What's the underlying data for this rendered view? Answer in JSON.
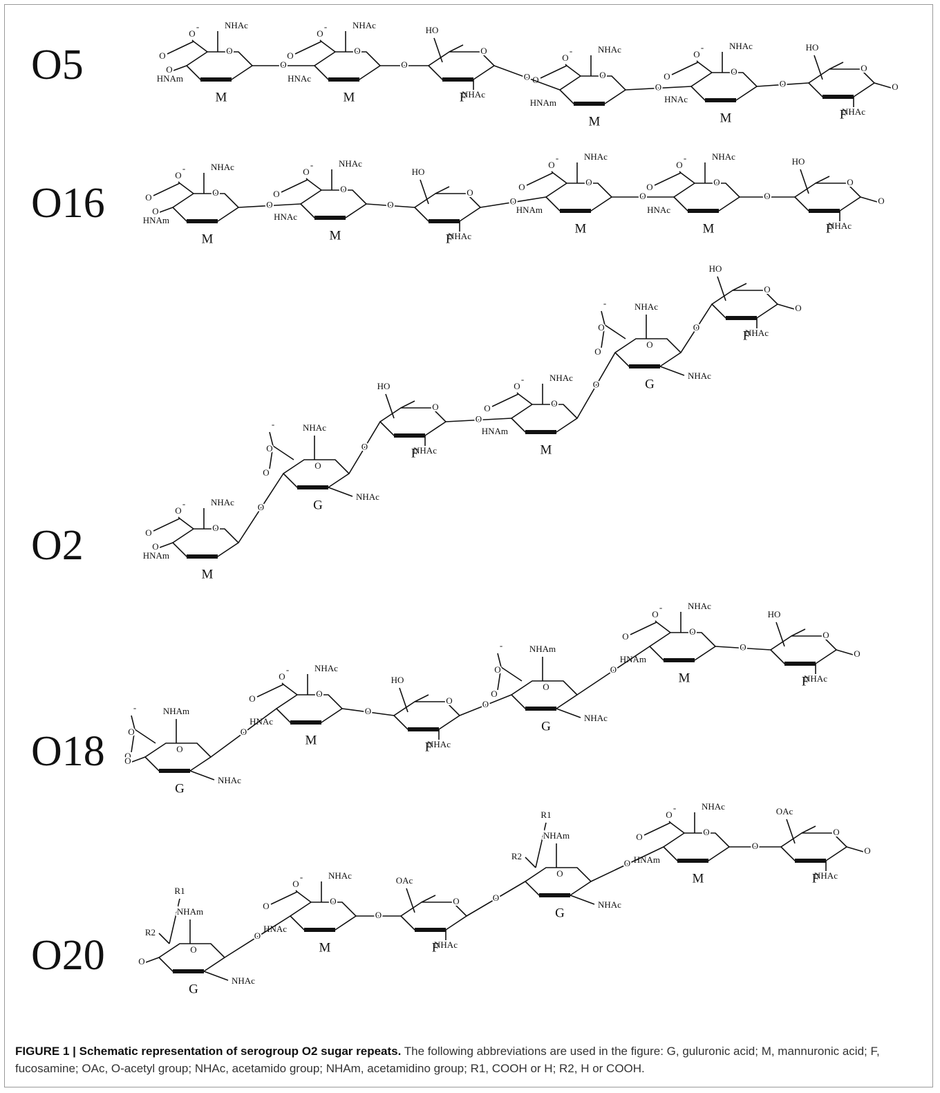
{
  "rows": [
    {
      "label": "O5",
      "links": [
        "O",
        "O",
        "O",
        "O",
        "O",
        "O",
        "O"
      ],
      "residues": [
        {
          "letter": "M",
          "labels": [
            "O",
            "O",
            "-",
            "NHAc",
            "O",
            "HNAm"
          ]
        },
        {
          "letter": "M",
          "labels": [
            "O",
            "O",
            "-",
            "NHAc",
            "O",
            "HNAc"
          ]
        },
        {
          "letter": "F",
          "labels": [
            "HO",
            "O",
            "NHAc"
          ]
        },
        {
          "letter": "M",
          "labels": [
            "O",
            "O",
            "-",
            "NHAc",
            "O",
            "HNAm"
          ]
        },
        {
          "letter": "M",
          "labels": [
            "O",
            "O",
            "-",
            "NHAc",
            "O",
            "HNAc"
          ]
        },
        {
          "letter": "F",
          "labels": [
            "HO",
            "O",
            "NHAc"
          ]
        }
      ]
    },
    {
      "label": "O16",
      "links": [
        "O",
        "O",
        "O",
        "O",
        "O",
        "O",
        "O"
      ],
      "residues": [
        {
          "letter": "M",
          "labels": [
            "O",
            "O",
            "-",
            "NHAc",
            "O",
            "HNAm"
          ]
        },
        {
          "letter": "M",
          "labels": [
            "O",
            "O",
            "-",
            "NHAc",
            "O",
            "HNAc"
          ]
        },
        {
          "letter": "F",
          "labels": [
            "HO",
            "O",
            "NHAc"
          ]
        },
        {
          "letter": "M",
          "labels": [
            "O",
            "O",
            "-",
            "NHAc",
            "O",
            "HNAm"
          ]
        },
        {
          "letter": "M",
          "labels": [
            "O",
            "O",
            "-",
            "NHAc",
            "O",
            "HNAc"
          ]
        },
        {
          "letter": "F",
          "labels": [
            "HO",
            "O",
            "NHAc"
          ]
        }
      ]
    },
    {
      "label": "O2",
      "links": [
        "O",
        "O",
        "O",
        "O",
        "O",
        "O",
        "O"
      ],
      "residues": [
        {
          "letter": "M",
          "labels": [
            "O",
            "O",
            "-",
            "NHAc",
            "O",
            "HNAm"
          ]
        },
        {
          "letter": "G",
          "labels": [
            "O",
            "-",
            "O",
            "NHAc",
            "O",
            "NHAc"
          ]
        },
        {
          "letter": "F",
          "labels": [
            "HO",
            "O",
            "NHAc"
          ]
        },
        {
          "letter": "M",
          "labels": [
            "O",
            "O",
            "-",
            "NHAc",
            "O",
            "HNAm"
          ]
        },
        {
          "letter": "G",
          "labels": [
            "O",
            "-",
            "O",
            "NHAc",
            "O",
            "NHAc"
          ]
        },
        {
          "letter": "F",
          "labels": [
            "HO",
            "O",
            "NHAc"
          ]
        }
      ]
    },
    {
      "label": "O18",
      "links": [
        "O",
        "O",
        "O",
        "O",
        "O",
        "O",
        "O"
      ],
      "residues": [
        {
          "letter": "G",
          "labels": [
            "O",
            "-",
            "O",
            "NHAm",
            "O",
            "NHAc"
          ]
        },
        {
          "letter": "M",
          "labels": [
            "O",
            "O",
            "-",
            "NHAc",
            "O",
            "HNAc"
          ]
        },
        {
          "letter": "F",
          "labels": [
            "HO",
            "O",
            "NHAc"
          ]
        },
        {
          "letter": "G",
          "labels": [
            "O",
            "-",
            "O",
            "NHAm",
            "O",
            "NHAc"
          ]
        },
        {
          "letter": "M",
          "labels": [
            "O",
            "O",
            "-",
            "NHAc",
            "O",
            "HNAm"
          ]
        },
        {
          "letter": "F",
          "labels": [
            "HO",
            "O",
            "NHAc"
          ]
        }
      ]
    },
    {
      "label": "O20",
      "links": [
        "O",
        "O",
        "O",
        "O",
        "O",
        "O",
        "O"
      ],
      "residues": [
        {
          "letter": "G",
          "labels": [
            "R1",
            "R2",
            "NHAm",
            "O",
            "NHAc"
          ]
        },
        {
          "letter": "M",
          "labels": [
            "O",
            "O",
            "-",
            "NHAc",
            "O",
            "HNAc"
          ]
        },
        {
          "letter": "F",
          "labels": [
            "OAc",
            "O",
            "NHAc"
          ]
        },
        {
          "letter": "G",
          "labels": [
            "R1",
            "R2",
            "NHAm",
            "O",
            "NHAc"
          ]
        },
        {
          "letter": "M",
          "labels": [
            "O",
            "O",
            "-",
            "NHAc",
            "O",
            "HNAm"
          ]
        },
        {
          "letter": "F",
          "labels": [
            "OAc",
            "O",
            "NHAc"
          ]
        }
      ]
    }
  ],
  "caption": {
    "title": "FIGURE 1 | Schematic representation of serogroup O2 sugar repeats.",
    "text": "The following abbreviations are used in the figure: G, guluronic acid; M, mannuronic acid; F, fucosamine; OAc, O-acetyl group; NHAc, acetamido group; NHAm, acetamidino group; R1, COOH or H; R2, H or COOH."
  }
}
